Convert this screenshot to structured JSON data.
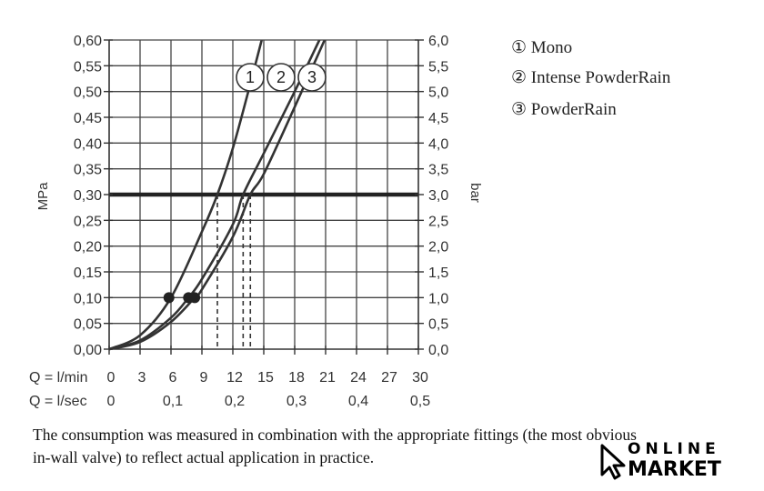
{
  "chart_data": {
    "type": "line",
    "x_axis": {
      "label": "Q = l/min",
      "ticks": [
        "0",
        "3",
        "6",
        "9",
        "12",
        "15",
        "18",
        "21",
        "24",
        "27",
        "30"
      ],
      "range": [
        0,
        30
      ]
    },
    "x_axis_secondary": {
      "label": "Q = l/sec",
      "ticks": [
        "0",
        "0,1",
        "0,2",
        "0,3",
        "0,4",
        "0,5"
      ],
      "range": [
        0,
        0.5
      ]
    },
    "y_axis": {
      "label": "MPa",
      "ticks": [
        "0,00",
        "0,05",
        "0,10",
        "0,15",
        "0,20",
        "0,25",
        "0,30",
        "0,35",
        "0,40",
        "0,45",
        "0,50",
        "0,55",
        "0,60"
      ],
      "range": [
        0,
        0.6
      ]
    },
    "y_axis_secondary": {
      "label": "bar",
      "ticks": [
        "0,0",
        "0,5",
        "1,0",
        "1,5",
        "2,0",
        "2,5",
        "3,0",
        "3,5",
        "4,0",
        "4,5",
        "5,0",
        "5,5",
        "6,0"
      ],
      "range": [
        0,
        6
      ]
    },
    "grid": true,
    "reference_line": {
      "y": 0.3
    },
    "series": [
      {
        "name": "Mono",
        "tag": "1",
        "x": [
          0,
          3,
          6,
          9,
          10.5,
          12,
          13.5,
          14.8
        ],
        "y": [
          0,
          0.027,
          0.1,
          0.228,
          0.3,
          0.39,
          0.5,
          0.6
        ],
        "marker": {
          "x": 5.8,
          "y": 0.1
        },
        "dashed_x": 10.5
      },
      {
        "name": "Intense PowderRain",
        "tag": "2",
        "x": [
          0,
          3,
          6,
          7.7,
          9,
          12,
          13,
          15,
          18,
          20.4
        ],
        "y": [
          0,
          0.017,
          0.061,
          0.1,
          0.136,
          0.242,
          0.3,
          0.38,
          0.5,
          0.6
        ],
        "marker": {
          "x": 7.7,
          "y": 0.1
        },
        "dashed_x": 13
      },
      {
        "name": "PowderRain",
        "tag": "3",
        "x": [
          0,
          3,
          6,
          8.3,
          9,
          12,
          13.7,
          15,
          18,
          20.9
        ],
        "y": [
          0,
          0.014,
          0.053,
          0.1,
          0.116,
          0.218,
          0.3,
          0.34,
          0.47,
          0.6
        ],
        "marker": {
          "x": 8.3,
          "y": 0.1
        },
        "dashed_x": 13.7
      }
    ],
    "legend": {
      "placement": "right",
      "items": [
        "① Mono",
        "② Intense PowderRain",
        "③ PowderRain"
      ]
    }
  },
  "caption": {
    "line1": "The consumption was measured in combination with the appropriate fittings (the most obvious",
    "line2": "in-wall valve) to reflect actual application in practice."
  },
  "logo": {
    "line1": "ONLINE",
    "line2": "MARKET"
  }
}
